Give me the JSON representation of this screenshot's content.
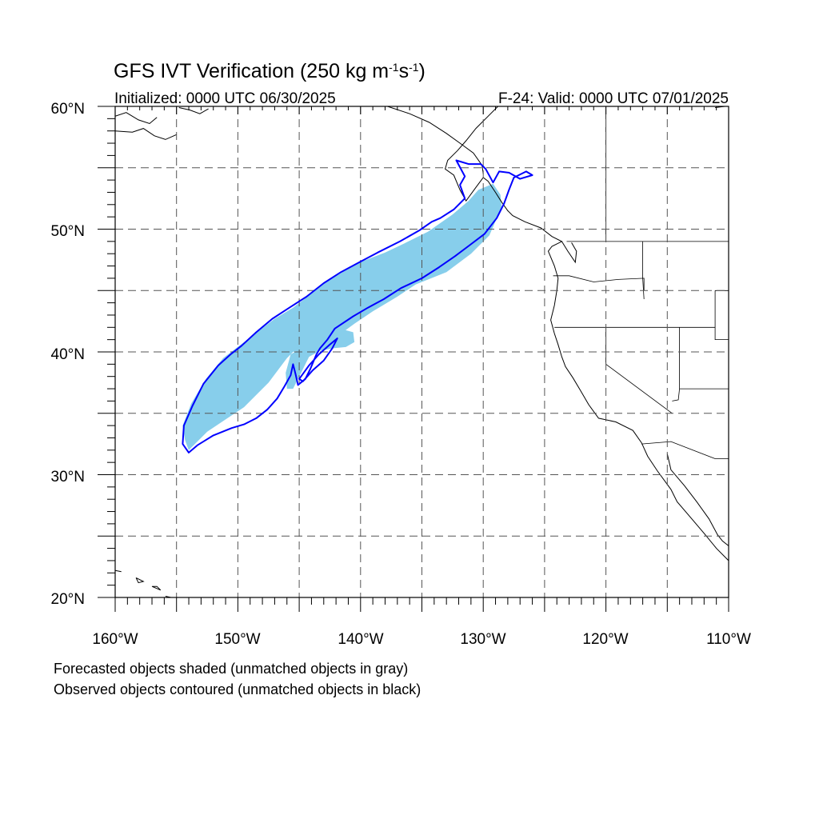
{
  "title_prefix": "GFS IVT Verification (250 kg m",
  "title_exp1": "-1",
  "title_mid": "s",
  "title_exp2": "-1",
  "title_suffix": ")",
  "initialized": "Initialized: 0000 UTC 06/30/2025",
  "valid": "F-24: Valid: 0000 UTC 07/01/2025",
  "captions": [
    "Forecasted objects shaded (unmatched objects in gray)",
    "Observed objects contoured (unmatched objects in black)"
  ],
  "axes": {
    "lat_labels": [
      "60°N",
      "50°N",
      "40°N",
      "30°N",
      "20°N"
    ],
    "lon_labels": [
      "160°W",
      "150°W",
      "140°W",
      "130°W",
      "120°W",
      "110°W"
    ],
    "lon_range": [
      -160,
      -110
    ],
    "lat_range": [
      20,
      60
    ],
    "grid_step_deg": 5,
    "grid_style": "dashed"
  },
  "colors": {
    "forecast_fill": "#87CEEB",
    "observed_contour": "#0000FF",
    "coastline": "#000000",
    "grid": "#555555"
  },
  "forecast_object": {
    "label": "Forecasted objects shaded",
    "points": [
      [
        -154,
        32
      ],
      [
        -152.5,
        33.5
      ],
      [
        -151,
        34.5
      ],
      [
        -149.5,
        35.5
      ],
      [
        -147.5,
        37.5
      ],
      [
        -146,
        39.5
      ],
      [
        -145.5,
        40
      ],
      [
        -143.5,
        40.5
      ],
      [
        -142,
        41.2
      ],
      [
        -140.5,
        42.3
      ],
      [
        -139,
        43.3
      ],
      [
        -137,
        44.5
      ],
      [
        -135.5,
        45.5
      ],
      [
        -133,
        46.5
      ],
      [
        -131,
        48
      ],
      [
        -129.5,
        49.5
      ],
      [
        -128.5,
        51.8
      ],
      [
        -128.6,
        52.8
      ],
      [
        -129.2,
        53.7
      ],
      [
        -130.4,
        53.2
      ],
      [
        -131.2,
        52.3
      ],
      [
        -132.5,
        51.2
      ],
      [
        -134.5,
        49.8
      ],
      [
        -136.5,
        48.8
      ],
      [
        -138,
        48.1
      ],
      [
        -139.8,
        47.4
      ],
      [
        -141.3,
        46.6
      ],
      [
        -142.8,
        45.7
      ],
      [
        -144.2,
        44.6
      ],
      [
        -145.5,
        43.6
      ],
      [
        -147,
        42.7
      ],
      [
        -148.2,
        41.8
      ],
      [
        -149.5,
        40.8
      ],
      [
        -151.2,
        39.5
      ],
      [
        -152.6,
        37.8
      ],
      [
        -153.8,
        35.8
      ],
      [
        -154.5,
        34
      ],
      [
        -154.3,
        32.8
      ]
    ]
  },
  "forecast_blob": {
    "label": "Forecasted object fragment",
    "points": [
      [
        -145.5,
        37
      ],
      [
        -144.8,
        38.4
      ],
      [
        -144.2,
        39.6
      ],
      [
        -143.3,
        40.1
      ],
      [
        -142.2,
        40.3
      ],
      [
        -141.2,
        40.4
      ],
      [
        -140.5,
        40.8
      ],
      [
        -140.6,
        41.6
      ],
      [
        -141.7,
        41.9
      ],
      [
        -143,
        41.2
      ],
      [
        -144.5,
        40.5
      ],
      [
        -145.7,
        39.8
      ],
      [
        -146.1,
        38.3
      ],
      [
        -146,
        37
      ]
    ]
  },
  "observed_contour": {
    "label": "Observed objects contoured",
    "points": [
      [
        -154,
        31.8
      ],
      [
        -153.3,
        32.4
      ],
      [
        -152,
        33.2
      ],
      [
        -150.5,
        33.8
      ],
      [
        -149.5,
        34.1
      ],
      [
        -148.5,
        34.6
      ],
      [
        -147.6,
        35.3
      ],
      [
        -146.8,
        36.2
      ],
      [
        -146.2,
        37.2
      ],
      [
        -145.7,
        38.1
      ],
      [
        -145.5,
        39.0
      ],
      [
        -145.3,
        38.2
      ],
      [
        -145.1,
        37.3
      ],
      [
        -144.5,
        37.8
      ],
      [
        -144.1,
        38.6
      ],
      [
        -143.6,
        39.8
      ],
      [
        -143.3,
        40.3
      ],
      [
        -142.7,
        41.0
      ],
      [
        -142.1,
        41.9
      ],
      [
        -140.6,
        42.9
      ],
      [
        -139.4,
        43.6
      ],
      [
        -138.1,
        44.3
      ],
      [
        -136.7,
        45.2
      ],
      [
        -135.0,
        46.0
      ],
      [
        -133.6,
        46.9
      ],
      [
        -132.3,
        47.8
      ],
      [
        -131.1,
        48.7
      ],
      [
        -129.9,
        49.6
      ],
      [
        -128.9,
        50.9
      ],
      [
        -128.3,
        52.1
      ],
      [
        -127.9,
        53.2
      ],
      [
        -127.5,
        54.2
      ],
      [
        -126.5,
        54.7
      ],
      [
        -126,
        54.4
      ],
      [
        -127,
        54.1
      ],
      [
        -127.9,
        54.6
      ],
      [
        -128.7,
        54.7
      ],
      [
        -129.2,
        53.8
      ],
      [
        -129.8,
        54.9
      ],
      [
        -130.2,
        55.3
      ],
      [
        -131.2,
        55.3
      ],
      [
        -132.2,
        55.6
      ],
      [
        -131.5,
        54.3
      ],
      [
        -131.9,
        53.6
      ],
      [
        -131.5,
        52.5
      ],
      [
        -132.4,
        51.6
      ],
      [
        -133.5,
        50.9
      ],
      [
        -134.2,
        50.6
      ],
      [
        -135.2,
        49.9
      ],
      [
        -136.8,
        49.0
      ],
      [
        -138.6,
        48.1
      ],
      [
        -140.1,
        47.3
      ],
      [
        -141.6,
        46.5
      ],
      [
        -143.0,
        45.6
      ],
      [
        -144.4,
        44.5
      ],
      [
        -145.8,
        43.6
      ],
      [
        -147.2,
        42.7
      ],
      [
        -148.5,
        41.6
      ],
      [
        -149.7,
        40.5
      ],
      [
        -150.6,
        39.8
      ],
      [
        -151.6,
        38.9
      ],
      [
        -152.8,
        37.4
      ],
      [
        -153.7,
        35.6
      ],
      [
        -154.4,
        34.0
      ],
      [
        -154.5,
        32.5
      ]
    ]
  },
  "observed_inner_loop": {
    "label": "Observed inner loop",
    "points": [
      [
        -145,
        37.8
      ],
      [
        -144.2,
        38.9
      ],
      [
        -143.4,
        39.8
      ],
      [
        -142.5,
        40.6
      ],
      [
        -141.9,
        41.1
      ],
      [
        -142.3,
        40.3
      ],
      [
        -143.0,
        39.3
      ],
      [
        -143.9,
        38.5
      ],
      [
        -144.7,
        37.6
      ]
    ]
  },
  "coastline_segments": {
    "label": "Coastlines and borders",
    "lines": [
      [
        [
          -128.8,
          60
        ],
        [
          -129.6,
          59.2
        ],
        [
          -130.6,
          58.2
        ],
        [
          -131.4,
          57.2
        ],
        [
          -132.1,
          56.4
        ],
        [
          -132.9,
          55.6
        ],
        [
          -133.1,
          54.9
        ],
        [
          -132.4,
          54.4
        ],
        [
          -131.9,
          53.2
        ],
        [
          -131.4,
          52.3
        ],
        [
          -130.6,
          53.4
        ],
        [
          -130.0,
          54.2
        ],
        [
          -129.6,
          53.9
        ],
        [
          -129.0,
          53.0
        ],
        [
          -128.5,
          52.2
        ],
        [
          -128.0,
          51.5
        ],
        [
          -127.6,
          51.1
        ],
        [
          -126.6,
          50.6
        ],
        [
          -125.3,
          50.1
        ],
        [
          -124.4,
          49.4
        ],
        [
          -123.6,
          49.0
        ],
        [
          -124.4,
          48.6
        ],
        [
          -124.7,
          48.2
        ],
        [
          -124.2,
          47.0
        ],
        [
          -123.9,
          46.0
        ],
        [
          -124.0,
          45.0
        ],
        [
          -124.2,
          43.8
        ],
        [
          -124.5,
          42.6
        ],
        [
          -124.2,
          41.5
        ],
        [
          -123.9,
          40.6
        ],
        [
          -123.6,
          39.6
        ],
        [
          -123.3,
          38.8
        ],
        [
          -122.7,
          37.9
        ],
        [
          -122.1,
          36.9
        ],
        [
          -121.4,
          35.7
        ],
        [
          -120.6,
          34.6
        ],
        [
          -119.2,
          34.3
        ],
        [
          -117.8,
          33.6
        ],
        [
          -117.1,
          32.6
        ],
        [
          -116.6,
          31.5
        ],
        [
          -115.8,
          30.3
        ],
        [
          -114.7,
          28.8
        ],
        [
          -114.2,
          27.8
        ],
        [
          -113.0,
          26.4
        ],
        [
          -111.9,
          25.1
        ],
        [
          -111.0,
          24.0
        ],
        [
          -110.0,
          23.0
        ]
      ],
      [
        [
          -115.0,
          31.7
        ],
        [
          -114.7,
          30.4
        ],
        [
          -113.6,
          29.1
        ],
        [
          -112.6,
          27.8
        ],
        [
          -111.6,
          26.4
        ],
        [
          -110.9,
          25.1
        ],
        [
          -110.5,
          24.6
        ],
        [
          -110.0,
          24.2
        ]
      ],
      [
        [
          -123.6,
          49.0
        ],
        [
          -123.1,
          48.2
        ],
        [
          -122.5,
          47.3
        ],
        [
          -122.4,
          48.2
        ],
        [
          -122.8,
          48.9
        ]
      ],
      [
        [
          -137.8,
          60
        ],
        [
          -136.0,
          59.4
        ],
        [
          -134.4,
          58.7
        ],
        [
          -133.0,
          57.8
        ],
        [
          -131.9,
          57.0
        ],
        [
          -130.8,
          56.2
        ],
        [
          -130.1,
          55.2
        ],
        [
          -130.0,
          54.5
        ]
      ],
      [
        [
          -160,
          59.2
        ],
        [
          -159.1,
          59.5
        ],
        [
          -158.1,
          58.9
        ],
        [
          -157.2,
          58.6
        ],
        [
          -156.6,
          59.1
        ]
      ],
      [
        [
          -160,
          58.0
        ],
        [
          -158.6,
          57.9
        ],
        [
          -157.7,
          58.2
        ],
        [
          -156.8,
          57.6
        ],
        [
          -155.9,
          57.3
        ],
        [
          -155.0,
          57.7
        ]
      ],
      [
        [
          -154.8,
          59.9
        ],
        [
          -153.9,
          59.7
        ],
        [
          -153.1,
          59.4
        ],
        [
          -152.4,
          59.8
        ]
      ],
      [
        [
          -111.1,
          59.9
        ],
        [
          -110.3,
          60
        ]
      ],
      [
        [
          -160,
          22.2
        ],
        [
          -159.5,
          22.1
        ]
      ],
      [
        [
          -158.3,
          21.6
        ],
        [
          -157.7,
          21.3
        ],
        [
          -158.1,
          21.2
        ],
        [
          -158.3,
          21.6
        ]
      ],
      [
        [
          -157.0,
          20.9
        ],
        [
          -156.3,
          20.6
        ],
        [
          -156.6,
          20.9
        ],
        [
          -157.0,
          20.9
        ]
      ],
      [
        [
          -155.9,
          20.1
        ],
        [
          -155.0,
          19.9
        ]
      ]
    ]
  },
  "border_segments": {
    "label": "State and national borders",
    "lines": [
      [
        [
          -141,
          60
        ],
        [
          -141,
          60
        ]
      ],
      [
        [
          -123.2,
          49
        ],
        [
          -110,
          49
        ]
      ],
      [
        [
          -120,
          60
        ],
        [
          -120,
          49
        ]
      ],
      [
        [
          -117,
          49
        ],
        [
          -117,
          46
        ],
        [
          -116.9,
          44.3
        ]
      ],
      [
        [
          -124.3,
          46.2
        ],
        [
          -123,
          46.2
        ],
        [
          -121,
          45.7
        ],
        [
          -119,
          45.9
        ],
        [
          -116.9,
          46
        ],
        [
          -116.9,
          45
        ]
      ],
      [
        [
          -124.2,
          42
        ],
        [
          -111.1,
          42
        ]
      ],
      [
        [
          -120,
          42
        ],
        [
          -120,
          39
        ],
        [
          -114.6,
          35
        ]
      ],
      [
        [
          -114,
          42
        ],
        [
          -114,
          37
        ],
        [
          -114.1,
          36.1
        ],
        [
          -114.6,
          36
        ]
      ],
      [
        [
          -111.1,
          45
        ],
        [
          -111.1,
          41
        ],
        [
          -110,
          41
        ]
      ],
      [
        [
          -114,
          37
        ],
        [
          -110,
          37
        ]
      ],
      [
        [
          -117.1,
          32.5
        ],
        [
          -114.7,
          32.7
        ],
        [
          -111.1,
          31.3
        ],
        [
          -110,
          31.3
        ]
      ],
      [
        [
          -110,
          45
        ],
        [
          -111.1,
          45
        ]
      ]
    ]
  }
}
